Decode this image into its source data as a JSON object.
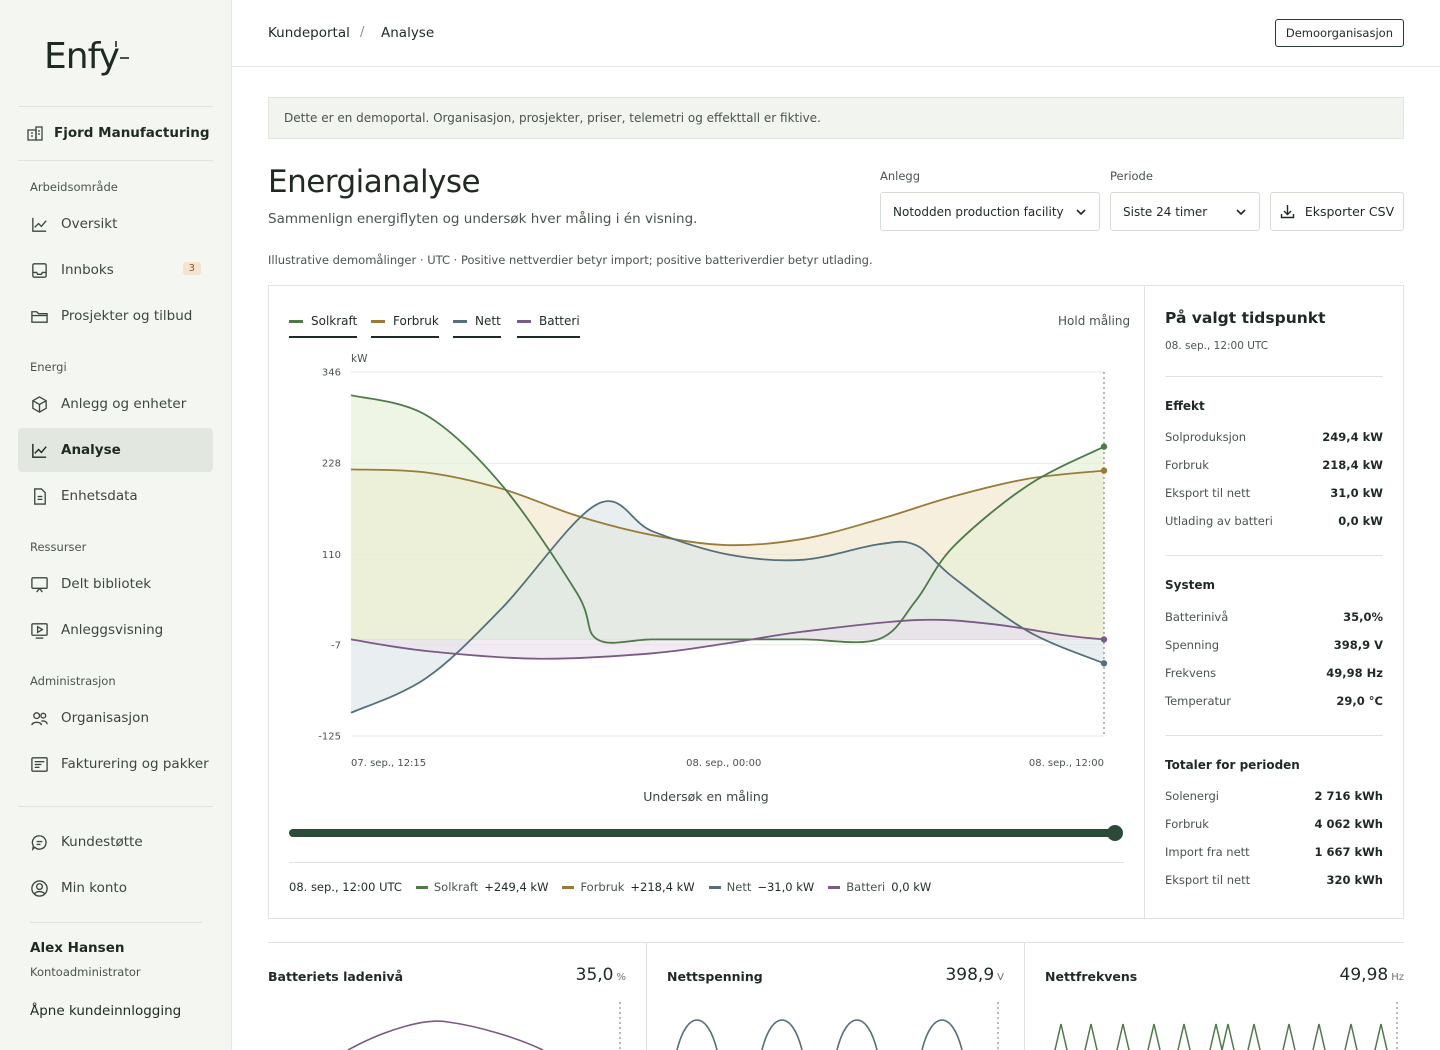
{
  "brand": {
    "logo_text": "Enfy"
  },
  "organization": {
    "name": "Fjord Manufacturing"
  },
  "sidebar": {
    "sections": [
      {
        "title": "Arbeidsområde",
        "items": [
          {
            "label": "Oversikt",
            "icon": "chart-line-icon"
          },
          {
            "label": "Innboks",
            "icon": "inbox-icon",
            "badge": "3"
          },
          {
            "label": "Prosjekter og tilbud",
            "icon": "folder-icon"
          }
        ]
      },
      {
        "title": "Energi",
        "items": [
          {
            "label": "Anlegg og enheter",
            "icon": "cube-icon"
          },
          {
            "label": "Analyse",
            "icon": "trend-icon",
            "active": true
          },
          {
            "label": "Enhetsdata",
            "icon": "document-icon"
          }
        ]
      },
      {
        "title": "Ressurser",
        "items": [
          {
            "label": "Delt bibliotek",
            "icon": "presentation-icon"
          },
          {
            "label": "Anleggsvisning",
            "icon": "video-icon"
          }
        ]
      },
      {
        "title": "Administrasjon",
        "items": [
          {
            "label": "Organisasjon",
            "icon": "users-icon"
          },
          {
            "label": "Fakturering og pakker",
            "icon": "invoice-icon"
          }
        ]
      }
    ],
    "footer_items": [
      {
        "label": "Kundestøtte",
        "icon": "chat-icon"
      },
      {
        "label": "Min konto",
        "icon": "user-circle-icon"
      }
    ],
    "user": {
      "name": "Alex Hansen",
      "role": "Kontoadministrator"
    },
    "login_link": "Åpne kundeinnlogging"
  },
  "header": {
    "breadcrumb": [
      "Kundeportal",
      "Analyse"
    ],
    "breadcrumb_sep": "/",
    "org_button": "Demoorganisasjon"
  },
  "notice": "Dette er en demoportal. Organisasjon, prosjekter, priser, telemetri og effekttall er fiktive.",
  "page": {
    "title": "Energianalyse",
    "subtitle": "Sammenlign energiflyten og undersøk hver måling i én visning.",
    "note": "Illustrative demomålinger · UTC · Positive nettverdier betyr import; positive batteriverdier betyr utlading."
  },
  "filters": {
    "facility_label": "Anlegg",
    "facility_value": "Notodden production facility",
    "period_label": "Periode",
    "period_value": "Siste 24 timer",
    "export_label": "Eksporter CSV"
  },
  "chart_legend": {
    "hold_label": "Hold måling"
  },
  "chart_data": {
    "type": "area",
    "ylabel": "kW",
    "yticks": [
      346,
      228,
      110,
      -7,
      -125
    ],
    "ylim": [
      -125,
      346
    ],
    "x": [
      "07. sep., 12:15",
      "08. sep., 00:00",
      "08. sep., 12:00"
    ],
    "grid": true,
    "legend": "top-left",
    "series": [
      {
        "name": "Solkraft",
        "color": "#4e7a4a",
        "fill": "#e6efd6",
        "points": [
          [
            0,
            316
          ],
          [
            0.1,
            290
          ],
          [
            0.2,
            200
          ],
          [
            0.3,
            60
          ],
          [
            0.327,
            0
          ],
          [
            0.4,
            0
          ],
          [
            0.5,
            0
          ],
          [
            0.6,
            0
          ],
          [
            0.7,
            0
          ],
          [
            0.75,
            50
          ],
          [
            0.8,
            120
          ],
          [
            0.9,
            200
          ],
          [
            1,
            249.4
          ]
        ]
      },
      {
        "name": "Forbruk",
        "color": "#9a7c3a",
        "fill": "#f1e6cc",
        "points": [
          [
            0,
            220
          ],
          [
            0.1,
            216
          ],
          [
            0.2,
            195
          ],
          [
            0.3,
            160
          ],
          [
            0.4,
            135
          ],
          [
            0.5,
            122
          ],
          [
            0.6,
            130
          ],
          [
            0.7,
            155
          ],
          [
            0.8,
            185
          ],
          [
            0.9,
            208
          ],
          [
            1,
            218.4
          ]
        ]
      },
      {
        "name": "Nett",
        "color": "#55707a",
        "fill": "#dde6e8",
        "points": [
          [
            0,
            -95
          ],
          [
            0.1,
            -50
          ],
          [
            0.2,
            40
          ],
          [
            0.327,
            175
          ],
          [
            0.4,
            140
          ],
          [
            0.5,
            110
          ],
          [
            0.6,
            103
          ],
          [
            0.7,
            123
          ],
          [
            0.75,
            122
          ],
          [
            0.8,
            80
          ],
          [
            0.9,
            10
          ],
          [
            1,
            -31
          ]
        ]
      },
      {
        "name": "Batteri",
        "color": "#7a5a86",
        "fill": "#ebe0ec",
        "points": [
          [
            0,
            0
          ],
          [
            0.1,
            -15
          ],
          [
            0.25,
            -25
          ],
          [
            0.4,
            -18
          ],
          [
            0.5,
            -5
          ],
          [
            0.6,
            10
          ],
          [
            0.75,
            25
          ],
          [
            0.85,
            20
          ],
          [
            0.95,
            5
          ],
          [
            1,
            0
          ]
        ]
      }
    ],
    "cursor_index": 1
  },
  "explore_label": "Undersøk en måling",
  "readout": {
    "time": "08. sep., 12:00 UTC",
    "items": [
      {
        "name": "Solkraft",
        "value": "+249,4 kW",
        "color": "#4e7a4a"
      },
      {
        "name": "Forbruk",
        "value": "+218,4 kW",
        "color": "#9a7c3a"
      },
      {
        "name": "Nett",
        "value": "−31,0 kW",
        "color": "#55707a"
      },
      {
        "name": "Batteri",
        "value": "0,0 kW",
        "color": "#7a5a86"
      }
    ]
  },
  "detail": {
    "title": "På valgt tidspunkt",
    "time": "08. sep., 12:00 UTC",
    "groups": [
      {
        "title": "Effekt",
        "rows": [
          {
            "k": "Solproduksjon",
            "v": "249,4 kW"
          },
          {
            "k": "Forbruk",
            "v": "218,4 kW"
          },
          {
            "k": "Eksport til nett",
            "v": "31,0 kW"
          },
          {
            "k": "Utlading av batteri",
            "v": "0,0 kW"
          }
        ]
      },
      {
        "title": "System",
        "rows": [
          {
            "k": "Batterinivå",
            "v": "35,0%"
          },
          {
            "k": "Spenning",
            "v": "398,9 V"
          },
          {
            "k": "Frekvens",
            "v": "49,98 Hz"
          },
          {
            "k": "Temperatur",
            "v": "29,0 °C"
          }
        ]
      },
      {
        "title": "Totaler for perioden",
        "rows": [
          {
            "k": "Solenergi",
            "v": "2 716 kWh"
          },
          {
            "k": "Forbruk",
            "v": "4 062 kWh"
          },
          {
            "k": "Import fra nett",
            "v": "1 667 kWh"
          },
          {
            "k": "Eksport til nett",
            "v": "320 kWh"
          }
        ]
      }
    ]
  },
  "cards": [
    {
      "title": "Batteriets ladenivå",
      "value": "35,0",
      "unit": "%"
    },
    {
      "title": "Nettspenning",
      "value": "398,9",
      "unit": "V"
    },
    {
      "title": "Nettfrekvens",
      "value": "49,98",
      "unit": "Hz"
    }
  ]
}
